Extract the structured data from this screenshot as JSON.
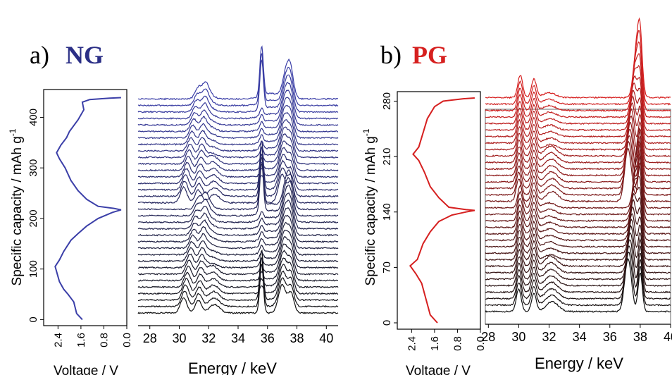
{
  "panels": [
    {
      "letter": "a)",
      "name": "NG",
      "name_color": "#2b2f86",
      "line_color_start": "#111111",
      "line_color_end": "#3b3fa8",
      "voltage_capacity": {
        "ylabel": "Specific capacity / mAh g",
        "ylabel_sup": "-1",
        "xlabel": "Voltage / V",
        "xticks": [
          "2.4",
          "1.6",
          "0.8",
          "0.0"
        ],
        "xtick_values": [
          2.4,
          1.6,
          0.8,
          0.0
        ],
        "xlim": [
          2.9,
          0.0
        ],
        "yticks": [
          "0",
          "100",
          "200",
          "300",
          "400"
        ],
        "ytick_values": [
          0,
          100,
          200,
          300,
          400
        ],
        "ylim": [
          -12,
          455
        ],
        "curve": [
          [
            1.55,
            0
          ],
          [
            1.75,
            12
          ],
          [
            1.85,
            35
          ],
          [
            2.05,
            50
          ],
          [
            2.2,
            60
          ],
          [
            2.35,
            75
          ],
          [
            2.5,
            105
          ],
          [
            2.35,
            118
          ],
          [
            2.2,
            135
          ],
          [
            2.05,
            148
          ],
          [
            1.95,
            157
          ],
          [
            1.7,
            170
          ],
          [
            1.4,
            185
          ],
          [
            1.0,
            200
          ],
          [
            0.5,
            212
          ],
          [
            0.2,
            217
          ],
          [
            0.45,
            220
          ],
          [
            1.0,
            224
          ],
          [
            1.4,
            238
          ],
          [
            1.7,
            255
          ],
          [
            1.95,
            275
          ],
          [
            2.15,
            300
          ],
          [
            2.35,
            318
          ],
          [
            2.45,
            330
          ],
          [
            2.3,
            345
          ],
          [
            2.1,
            360
          ],
          [
            2.0,
            372
          ],
          [
            1.7,
            395
          ],
          [
            1.5,
            415
          ],
          [
            1.55,
            430
          ],
          [
            1.3,
            435
          ],
          [
            0.6,
            438
          ],
          [
            0.2,
            439
          ]
        ]
      },
      "spectra": {
        "xlabel": "Energy / keV",
        "xticks": [
          "28",
          "30",
          "32",
          "34",
          "36",
          "38",
          "40"
        ],
        "xtick_values": [
          28,
          30,
          32,
          34,
          36,
          38,
          40
        ],
        "xlim": [
          27.2,
          40.8
        ],
        "n_curves": 34
      }
    },
    {
      "letter": "b)",
      "name": "PG",
      "name_color": "#d6201f",
      "line_color_start": "#111111",
      "line_color_end": "#d62020",
      "voltage_capacity": {
        "ylabel": "Specific capacity / mAh g",
        "ylabel_sup": "-1",
        "xlabel": "Voltage / V",
        "xticks": [
          "2.4",
          "1.6",
          "0.8",
          "0.0"
        ],
        "xtick_values": [
          2.4,
          1.6,
          0.8,
          0.0
        ],
        "xlim": [
          2.9,
          0.0
        ],
        "yticks": [
          "0",
          "70",
          "140",
          "210",
          "280"
        ],
        "ytick_values": [
          0,
          70,
          140,
          210,
          280
        ],
        "ylim": [
          -8,
          292
        ],
        "curve": [
          [
            1.5,
            0
          ],
          [
            1.75,
            10
          ],
          [
            1.9,
            30
          ],
          [
            2.05,
            50
          ],
          [
            2.25,
            62
          ],
          [
            2.45,
            72
          ],
          [
            2.2,
            80
          ],
          [
            2.0,
            100
          ],
          [
            1.75,
            115
          ],
          [
            1.45,
            128
          ],
          [
            1.0,
            136
          ],
          [
            0.5,
            140
          ],
          [
            0.2,
            142
          ],
          [
            0.5,
            143
          ],
          [
            1.1,
            146
          ],
          [
            1.45,
            158
          ],
          [
            1.75,
            172
          ],
          [
            1.95,
            190
          ],
          [
            2.15,
            205
          ],
          [
            2.35,
            213
          ],
          [
            2.15,
            222
          ],
          [
            2.0,
            240
          ],
          [
            1.85,
            258
          ],
          [
            1.6,
            273
          ],
          [
            1.3,
            280
          ],
          [
            0.6,
            283
          ],
          [
            0.2,
            284
          ]
        ]
      },
      "spectra": {
        "xlabel": "Energy / keV",
        "xticks": [
          "28",
          "30",
          "32",
          "34",
          "36",
          "38",
          "40"
        ],
        "xtick_values": [
          28,
          30,
          32,
          34,
          36,
          38,
          40
        ],
        "xlim": [
          27.8,
          40.0
        ],
        "n_curves": 34
      }
    }
  ],
  "chart_data": [
    {
      "type": "line",
      "panel": "a) NG",
      "xlabel": "Voltage / V",
      "ylabel": "Specific capacity / mAh g-1",
      "xlim": [
        2.9,
        0.0
      ],
      "ylim": [
        -12,
        455
      ],
      "series": [
        {
          "x": [
            1.55,
            1.75,
            1.85,
            2.05,
            2.2,
            2.35,
            2.5,
            2.35,
            2.2,
            2.05,
            1.95,
            1.7,
            1.4,
            1.0,
            0.5,
            0.2,
            0.45,
            1.0,
            1.4,
            1.7,
            1.95,
            2.15,
            2.35,
            2.45,
            2.3,
            2.1,
            2.0,
            1.7,
            1.5,
            1.55,
            1.3,
            0.6,
            0.2
          ],
          "y": [
            0,
            12,
            35,
            50,
            60,
            75,
            105,
            118,
            135,
            148,
            157,
            170,
            185,
            200,
            212,
            217,
            220,
            224,
            238,
            255,
            275,
            300,
            318,
            330,
            345,
            360,
            372,
            395,
            415,
            430,
            435,
            438,
            439
          ]
        }
      ]
    },
    {
      "type": "line",
      "panel": "a) NG",
      "xlabel": "Energy / keV",
      "xlim": [
        27.2,
        40.8
      ],
      "series_count": 34,
      "peaks_keV": [
        30.3,
        31.3,
        32.4,
        35.6,
        37.0,
        37.6
      ]
    },
    {
      "type": "line",
      "panel": "b) PG",
      "xlabel": "Voltage / V",
      "ylabel": "Specific capacity / mAh g-1",
      "xlim": [
        2.9,
        0.0
      ],
      "ylim": [
        -8,
        292
      ],
      "series": [
        {
          "x": [
            1.5,
            1.75,
            1.9,
            2.05,
            2.25,
            2.45,
            2.2,
            2.0,
            1.75,
            1.45,
            1.0,
            0.5,
            0.2,
            0.5,
            1.1,
            1.45,
            1.75,
            1.95,
            2.15,
            2.35,
            2.15,
            2.0,
            1.85,
            1.6,
            1.3,
            0.6,
            0.2
          ],
          "y": [
            0,
            10,
            30,
            50,
            62,
            72,
            80,
            100,
            115,
            128,
            136,
            140,
            142,
            143,
            146,
            158,
            172,
            190,
            205,
            213,
            222,
            240,
            258,
            273,
            280,
            283,
            284
          ]
        }
      ]
    },
    {
      "type": "line",
      "panel": "b) PG",
      "xlabel": "Energy / keV",
      "xlim": [
        27.8,
        40.0
      ],
      "series_count": 34,
      "peaks_keV": [
        30.0,
        31.0,
        32.2,
        37.2,
        38.0
      ]
    }
  ]
}
